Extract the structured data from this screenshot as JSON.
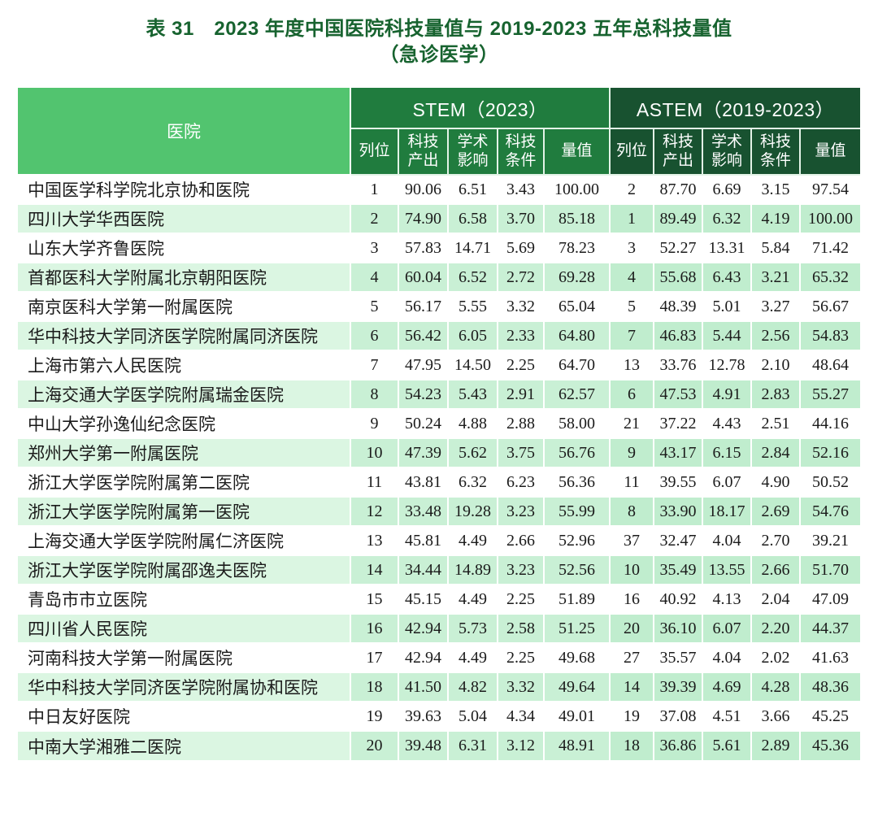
{
  "title": {
    "line1": "表 31　2023 年度中国医院科技量值与 2019-2023 五年总科技量值",
    "line2": "（急诊医学）"
  },
  "table": {
    "hospital_header": "医院",
    "groups": [
      {
        "label": "STEM（2023）"
      },
      {
        "label": "ASTEM（2019-2023）"
      }
    ],
    "subheaders": [
      "列位",
      "科技产出",
      "学术影响",
      "科技条件",
      "量值"
    ],
    "rows": [
      {
        "hospital": "中国医学科学院北京协和医院",
        "stem": [
          "1",
          "90.06",
          "6.51",
          "3.43",
          "100.00"
        ],
        "astem": [
          "2",
          "87.70",
          "6.69",
          "3.15",
          "97.54"
        ]
      },
      {
        "hospital": "四川大学华西医院",
        "stem": [
          "2",
          "74.90",
          "6.58",
          "3.70",
          "85.18"
        ],
        "astem": [
          "1",
          "89.49",
          "6.32",
          "4.19",
          "100.00"
        ]
      },
      {
        "hospital": "山东大学齐鲁医院",
        "stem": [
          "3",
          "57.83",
          "14.71",
          "5.69",
          "78.23"
        ],
        "astem": [
          "3",
          "52.27",
          "13.31",
          "5.84",
          "71.42"
        ]
      },
      {
        "hospital": "首都医科大学附属北京朝阳医院",
        "stem": [
          "4",
          "60.04",
          "6.52",
          "2.72",
          "69.28"
        ],
        "astem": [
          "4",
          "55.68",
          "6.43",
          "3.21",
          "65.32"
        ]
      },
      {
        "hospital": "南京医科大学第一附属医院",
        "stem": [
          "5",
          "56.17",
          "5.55",
          "3.32",
          "65.04"
        ],
        "astem": [
          "5",
          "48.39",
          "5.01",
          "3.27",
          "56.67"
        ]
      },
      {
        "hospital": "华中科技大学同济医学院附属同济医院",
        "stem": [
          "6",
          "56.42",
          "6.05",
          "2.33",
          "64.80"
        ],
        "astem": [
          "7",
          "46.83",
          "5.44",
          "2.56",
          "54.83"
        ]
      },
      {
        "hospital": "上海市第六人民医院",
        "stem": [
          "7",
          "47.95",
          "14.50",
          "2.25",
          "64.70"
        ],
        "astem": [
          "13",
          "33.76",
          "12.78",
          "2.10",
          "48.64"
        ]
      },
      {
        "hospital": "上海交通大学医学院附属瑞金医院",
        "stem": [
          "8",
          "54.23",
          "5.43",
          "2.91",
          "62.57"
        ],
        "astem": [
          "6",
          "47.53",
          "4.91",
          "2.83",
          "55.27"
        ]
      },
      {
        "hospital": "中山大学孙逸仙纪念医院",
        "stem": [
          "9",
          "50.24",
          "4.88",
          "2.88",
          "58.00"
        ],
        "astem": [
          "21",
          "37.22",
          "4.43",
          "2.51",
          "44.16"
        ]
      },
      {
        "hospital": "郑州大学第一附属医院",
        "stem": [
          "10",
          "47.39",
          "5.62",
          "3.75",
          "56.76"
        ],
        "astem": [
          "9",
          "43.17",
          "6.15",
          "2.84",
          "52.16"
        ]
      },
      {
        "hospital": "浙江大学医学院附属第二医院",
        "stem": [
          "11",
          "43.81",
          "6.32",
          "6.23",
          "56.36"
        ],
        "astem": [
          "11",
          "39.55",
          "6.07",
          "4.90",
          "50.52"
        ]
      },
      {
        "hospital": "浙江大学医学院附属第一医院",
        "stem": [
          "12",
          "33.48",
          "19.28",
          "3.23",
          "55.99"
        ],
        "astem": [
          "8",
          "33.90",
          "18.17",
          "2.69",
          "54.76"
        ]
      },
      {
        "hospital": "上海交通大学医学院附属仁济医院",
        "stem": [
          "13",
          "45.81",
          "4.49",
          "2.66",
          "52.96"
        ],
        "astem": [
          "37",
          "32.47",
          "4.04",
          "2.70",
          "39.21"
        ]
      },
      {
        "hospital": "浙江大学医学院附属邵逸夫医院",
        "stem": [
          "14",
          "34.44",
          "14.89",
          "3.23",
          "52.56"
        ],
        "astem": [
          "10",
          "35.49",
          "13.55",
          "2.66",
          "51.70"
        ]
      },
      {
        "hospital": "青岛市市立医院",
        "stem": [
          "15",
          "45.15",
          "4.49",
          "2.25",
          "51.89"
        ],
        "astem": [
          "16",
          "40.92",
          "4.13",
          "2.04",
          "47.09"
        ]
      },
      {
        "hospital": "四川省人民医院",
        "stem": [
          "16",
          "42.94",
          "5.73",
          "2.58",
          "51.25"
        ],
        "astem": [
          "20",
          "36.10",
          "6.07",
          "2.20",
          "44.37"
        ]
      },
      {
        "hospital": "河南科技大学第一附属医院",
        "stem": [
          "17",
          "42.94",
          "4.49",
          "2.25",
          "49.68"
        ],
        "astem": [
          "27",
          "35.57",
          "4.04",
          "2.02",
          "41.63"
        ]
      },
      {
        "hospital": "华中科技大学同济医学院附属协和医院",
        "stem": [
          "18",
          "41.50",
          "4.82",
          "3.32",
          "49.64"
        ],
        "astem": [
          "14",
          "39.39",
          "4.69",
          "4.28",
          "48.36"
        ]
      },
      {
        "hospital": "中日友好医院",
        "stem": [
          "19",
          "39.63",
          "5.04",
          "4.34",
          "49.01"
        ],
        "astem": [
          "19",
          "37.08",
          "4.51",
          "3.66",
          "45.25"
        ]
      },
      {
        "hospital": "中南大学湘雅二医院",
        "stem": [
          "20",
          "39.48",
          "6.31",
          "3.12",
          "48.91"
        ],
        "astem": [
          "18",
          "36.86",
          "5.61",
          "2.89",
          "45.36"
        ]
      }
    ]
  },
  "colors": {
    "title_green": "#17632f",
    "hospital_header_green": "#52c46f",
    "stem_header_green": "#207c3e",
    "astem_header_green": "#185230",
    "stripe_hospital": "#dbf6e2",
    "stripe_stem": "#c9f0d5",
    "stripe_astem": "#c0edce"
  }
}
